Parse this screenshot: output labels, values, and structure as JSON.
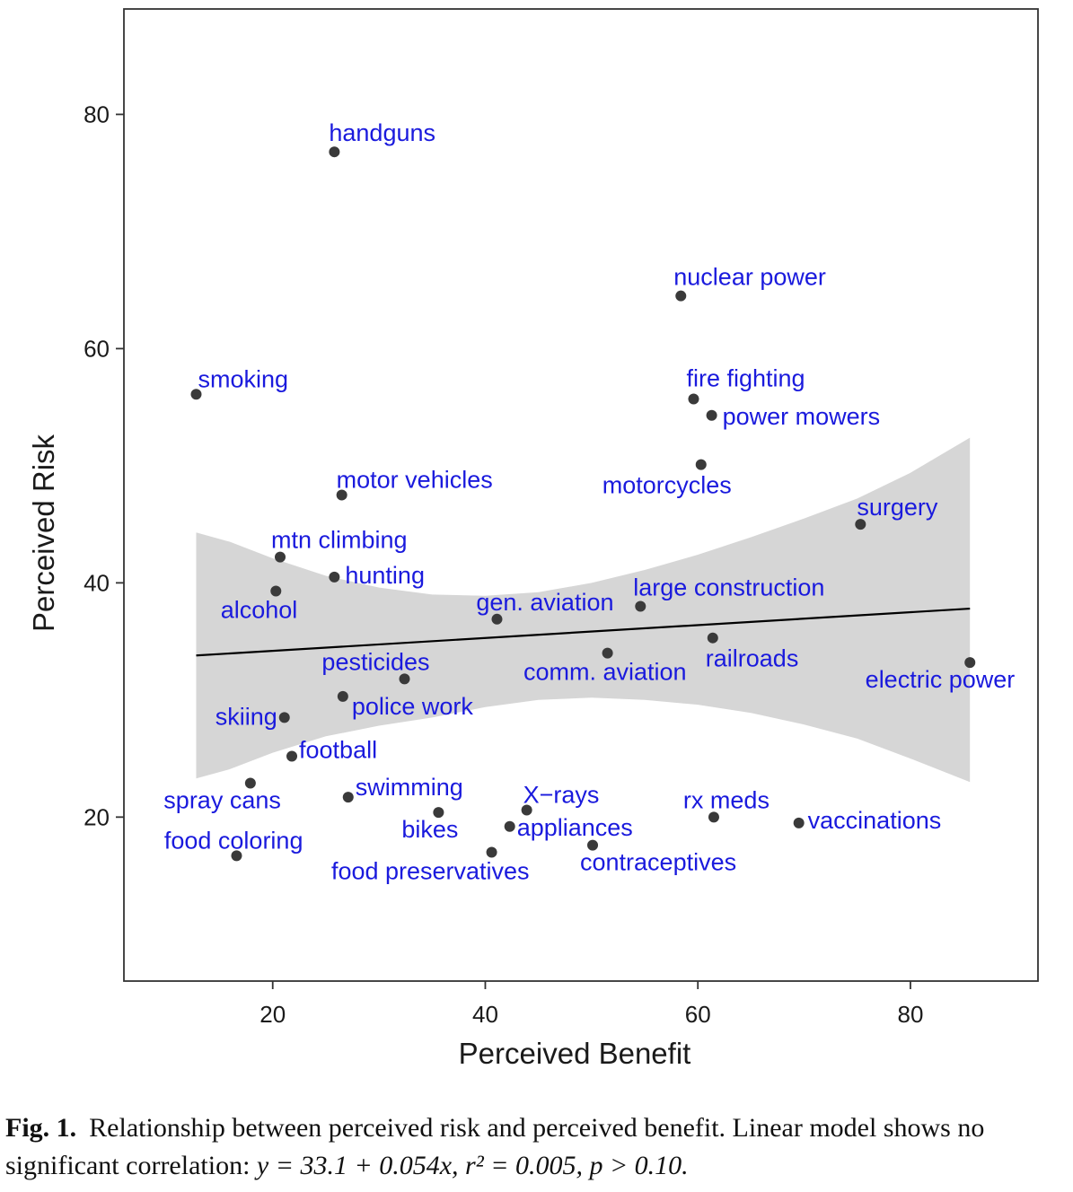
{
  "chart_data": {
    "type": "scatter",
    "xlabel": "Perceived Benefit",
    "ylabel": "Perceived Risk",
    "xlim": [
      6,
      92
    ],
    "ylim": [
      6,
      89
    ],
    "xticks": [
      20,
      40,
      60,
      80
    ],
    "yticks": [
      20,
      40,
      60,
      80
    ],
    "grid": false,
    "points": [
      {
        "label": "handguns",
        "x": 25.8,
        "y": 76.8,
        "anchor": "start",
        "dx": -6,
        "dy": -12
      },
      {
        "label": "nuclear power",
        "x": 58.4,
        "y": 64.5,
        "anchor": "start",
        "dx": -8,
        "dy": -12
      },
      {
        "label": "smoking",
        "x": 12.8,
        "y": 56.1,
        "anchor": "start",
        "dx": 2,
        "dy": -8
      },
      {
        "label": "fire fighting",
        "x": 59.6,
        "y": 55.7,
        "anchor": "start",
        "dx": -8,
        "dy": -14
      },
      {
        "label": "power mowers",
        "x": 61.3,
        "y": 54.3,
        "anchor": "start",
        "dx": 12,
        "dy": 10
      },
      {
        "label": "motorcycles",
        "x": 60.3,
        "y": 50.1,
        "anchor": "end",
        "dx": 34,
        "dy": 32
      },
      {
        "label": "motor vehicles",
        "x": 26.5,
        "y": 47.5,
        "anchor": "start",
        "dx": -6,
        "dy": -8
      },
      {
        "label": "surgery",
        "x": 75.3,
        "y": 45.0,
        "anchor": "start",
        "dx": -4,
        "dy": -10
      },
      {
        "label": "mtn climbing",
        "x": 20.7,
        "y": 42.2,
        "anchor": "start",
        "dx": -10,
        "dy": -10
      },
      {
        "label": "hunting",
        "x": 25.8,
        "y": 40.5,
        "anchor": "start",
        "dx": 12,
        "dy": 7
      },
      {
        "label": "alcohol",
        "x": 20.3,
        "y": 39.3,
        "anchor": "end",
        "dx": 24,
        "dy": 30
      },
      {
        "label": "large construction",
        "x": 54.6,
        "y": 38.0,
        "anchor": "start",
        "dx": -8,
        "dy": -12
      },
      {
        "label": "gen. aviation",
        "x": 41.1,
        "y": 36.9,
        "anchor": "end",
        "dx": 130,
        "dy": -10
      },
      {
        "label": "railroads",
        "x": 61.4,
        "y": 35.3,
        "anchor": "start",
        "dx": -8,
        "dy": 32
      },
      {
        "label": "comm. aviation",
        "x": 51.5,
        "y": 34.0,
        "anchor": "end",
        "dx": 88,
        "dy": 30
      },
      {
        "label": "electric power",
        "x": 85.6,
        "y": 33.2,
        "anchor": "end",
        "dx": 50,
        "dy": 28
      },
      {
        "label": "pesticides",
        "x": 32.4,
        "y": 31.8,
        "anchor": "end",
        "dx": 28,
        "dy": -10
      },
      {
        "label": "police work",
        "x": 26.6,
        "y": 30.3,
        "anchor": "start",
        "dx": 10,
        "dy": 20
      },
      {
        "label": "skiing",
        "x": 21.1,
        "y": 28.5,
        "anchor": "end",
        "dx": -8,
        "dy": 8
      },
      {
        "label": "football",
        "x": 21.8,
        "y": 25.2,
        "anchor": "start",
        "dx": 8,
        "dy": 2
      },
      {
        "label": "spray cans",
        "x": 17.9,
        "y": 22.9,
        "anchor": "end",
        "dx": 34,
        "dy": 28
      },
      {
        "label": "swimming",
        "x": 27.1,
        "y": 21.7,
        "anchor": "start",
        "dx": 8,
        "dy": -2
      },
      {
        "label": "X−rays",
        "x": 43.9,
        "y": 20.6,
        "anchor": "start",
        "dx": -4,
        "dy": -8
      },
      {
        "label": "bikes",
        "x": 35.6,
        "y": 20.4,
        "anchor": "end",
        "dx": 22,
        "dy": 28
      },
      {
        "label": "rx meds",
        "x": 61.5,
        "y": 20.0,
        "anchor": "end",
        "dx": 62,
        "dy": -10
      },
      {
        "label": "vaccinations",
        "x": 69.5,
        "y": 19.5,
        "anchor": "start",
        "dx": 10,
        "dy": 6
      },
      {
        "label": "appliances",
        "x": 42.3,
        "y": 19.2,
        "anchor": "start",
        "dx": 8,
        "dy": 10
      },
      {
        "label": "contraceptives",
        "x": 50.1,
        "y": 17.6,
        "anchor": "start",
        "dx": -14,
        "dy": 28
      },
      {
        "label": "food preservatives",
        "x": 40.6,
        "y": 17.0,
        "anchor": "end",
        "dx": 42,
        "dy": 30
      },
      {
        "label": "food coloring",
        "x": 16.6,
        "y": 16.7,
        "anchor": "end",
        "dx": 74,
        "dy": -8
      }
    ],
    "fit_line": {
      "x": [
        12.8,
        85.6
      ],
      "y": [
        33.8,
        37.8
      ]
    },
    "confidence_band": {
      "x": [
        12.8,
        16,
        20,
        25,
        30,
        35,
        40,
        45,
        50,
        55,
        60,
        65,
        70,
        75,
        80,
        85.6
      ],
      "upper": [
        44.3,
        43.5,
        42.1,
        40.6,
        39.6,
        39.0,
        38.9,
        39.2,
        40.0,
        41.1,
        42.4,
        43.9,
        45.5,
        47.2,
        49.4,
        52.4
      ],
      "lower": [
        23.3,
        24.1,
        25.5,
        26.9,
        27.8,
        28.5,
        29.4,
        30.0,
        30.2,
        30.0,
        29.6,
        28.9,
        27.9,
        26.7,
        25.0,
        23.0
      ]
    }
  },
  "caption": {
    "fig_num": "Fig. 1.",
    "text": "Relationship between perceived risk and perceived benefit. Linear model shows no significant correlation: ",
    "formula": "y = 33.1 + 0.054x,  r² = 0.005, p > 0.10."
  }
}
